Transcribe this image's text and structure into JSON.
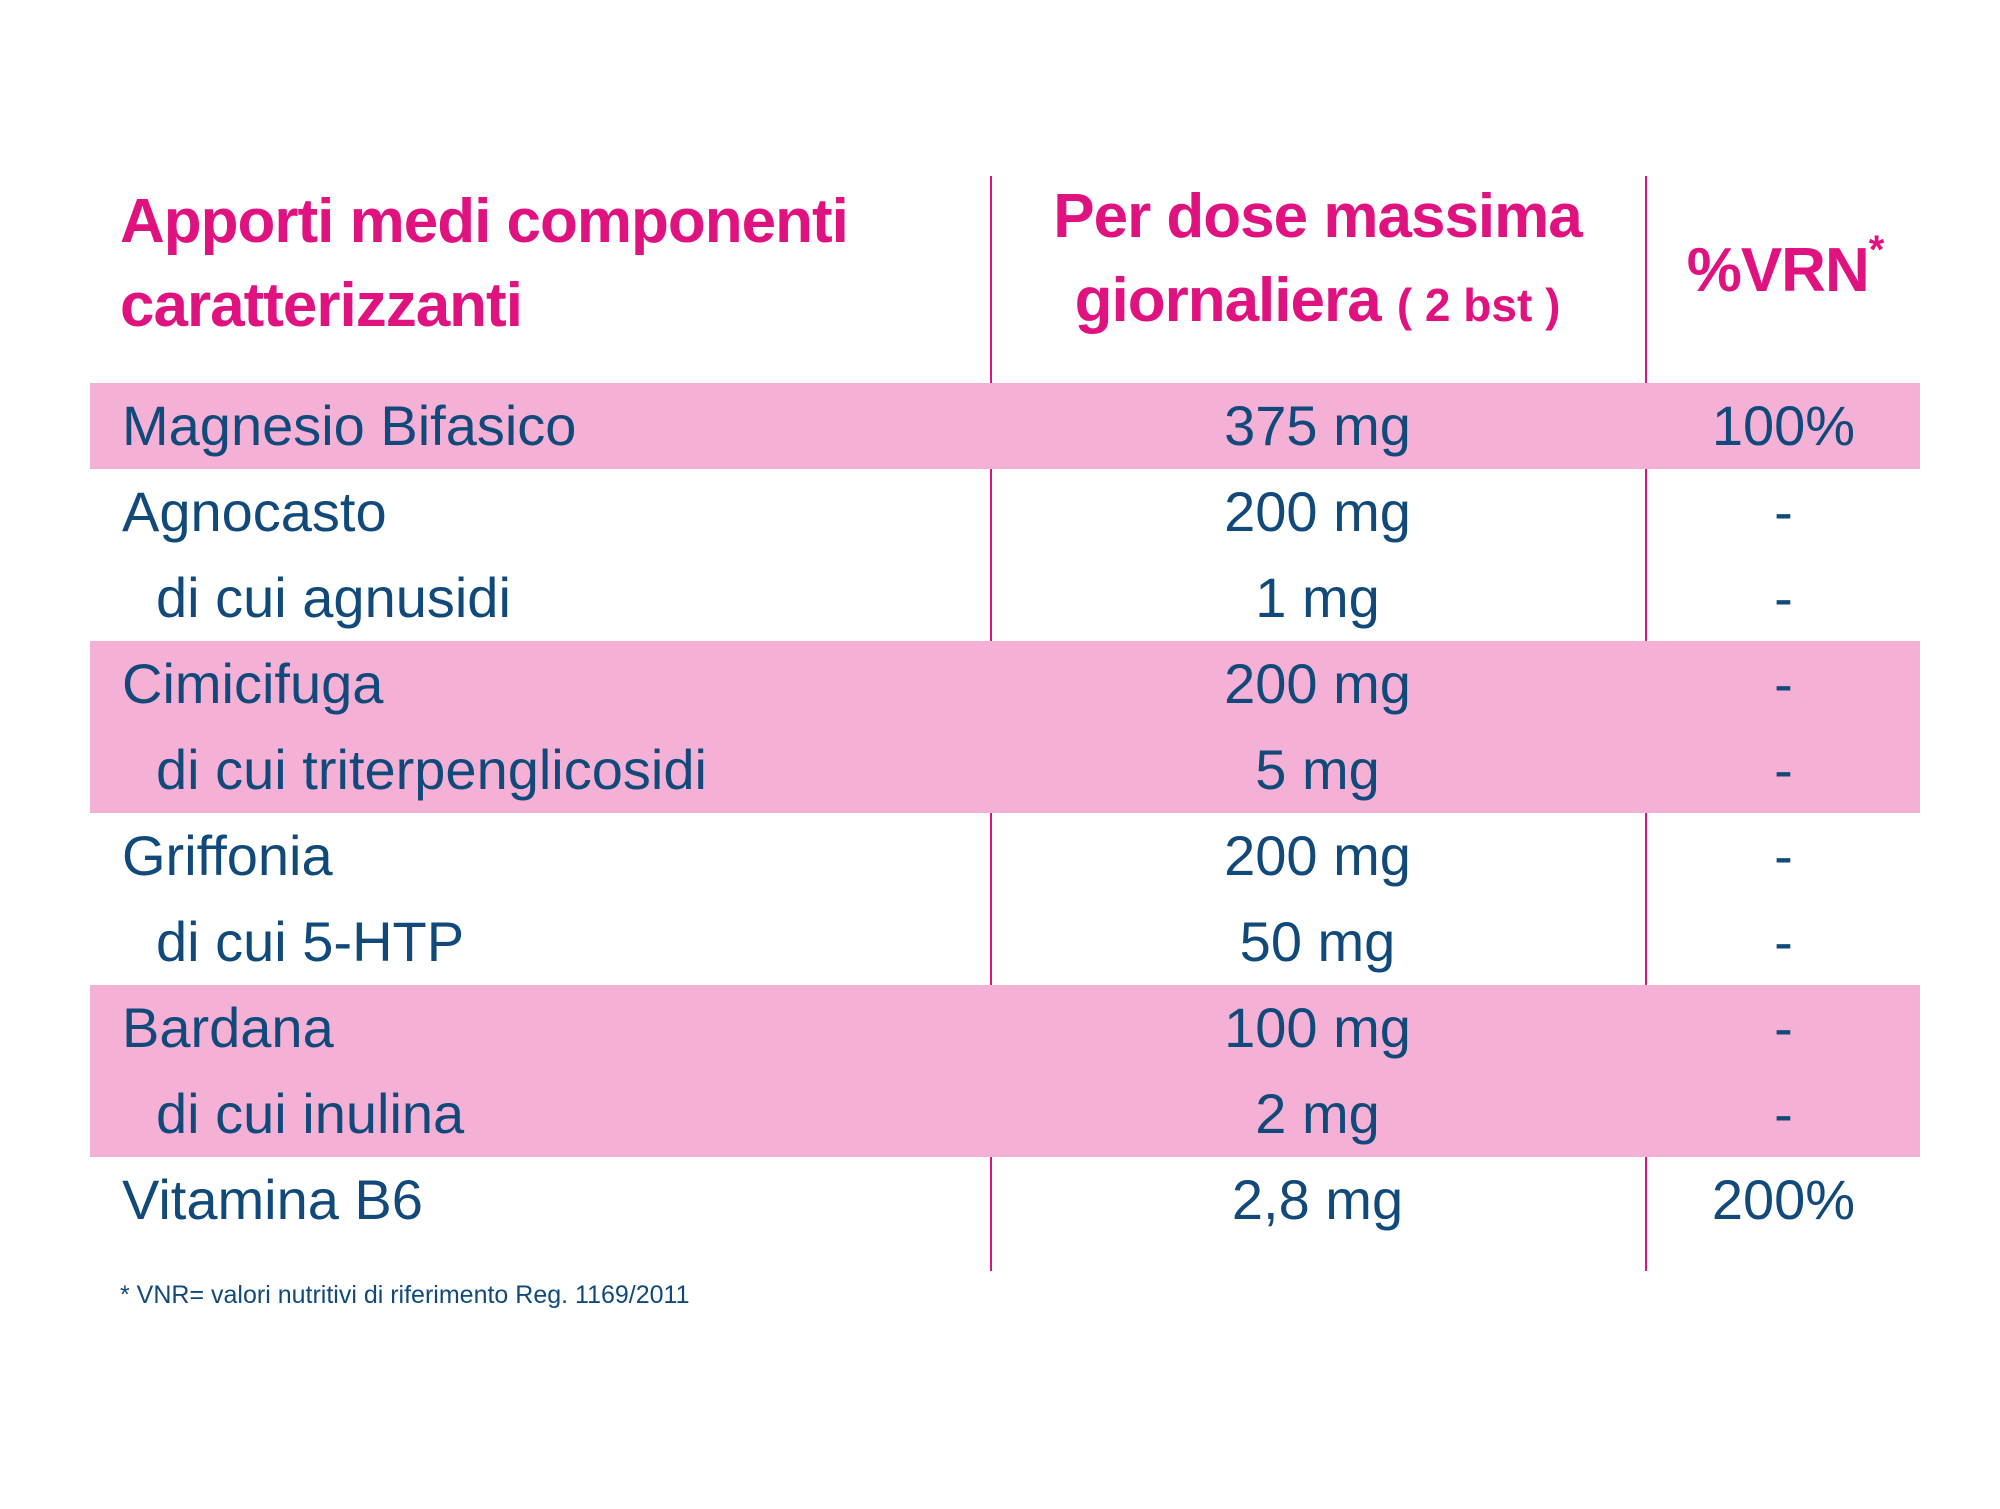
{
  "header": {
    "col1_line1": "Apporti medi componenti",
    "col1_line2": "caratterizzanti",
    "col2_line1": "Per dose massima",
    "col2_line2": "giornaliera",
    "col2_note": "( 2 bst )",
    "col3": "%VRN",
    "col3_mark": "*"
  },
  "rows": [
    {
      "name": "Magnesio Bifasico",
      "dose": "375 mg",
      "vrn": "100%",
      "sub": false,
      "pink": true
    },
    {
      "name": "Agnocasto",
      "dose": "200 mg",
      "vrn": "-",
      "sub": false,
      "pink": false
    },
    {
      "name": "di cui agnusidi",
      "dose": "1 mg",
      "vrn": "-",
      "sub": true,
      "pink": false
    },
    {
      "name": "Cimicifuga",
      "dose": "200 mg",
      "vrn": "-",
      "sub": false,
      "pink": true
    },
    {
      "name": "di cui triterpenglicosidi",
      "dose": "5 mg",
      "vrn": "-",
      "sub": true,
      "pink": true
    },
    {
      "name": "Griffonia",
      "dose": "200 mg",
      "vrn": "-",
      "sub": false,
      "pink": false
    },
    {
      "name": "di cui 5-HTP",
      "dose": "50 mg",
      "vrn": "-",
      "sub": true,
      "pink": false
    },
    {
      "name": "Bardana",
      "dose": "100 mg",
      "vrn": "-",
      "sub": false,
      "pink": true
    },
    {
      "name": "di cui inulina",
      "dose": "2 mg",
      "vrn": "-",
      "sub": true,
      "pink": true
    },
    {
      "name": "Vitamina B6",
      "dose": "2,8 mg",
      "vrn": "200%",
      "sub": false,
      "pink": false
    }
  ],
  "footnote": "* VNR= valori nutritivi di riferimento Reg. 1169/2011",
  "colors": {
    "accent": "#e0127f",
    "text": "#114a7a",
    "band": "#f5b0d6"
  }
}
